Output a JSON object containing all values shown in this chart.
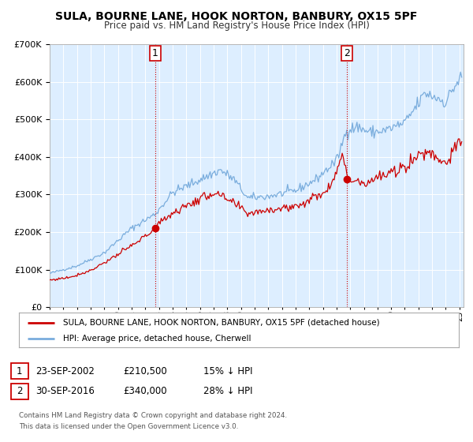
{
  "title": "SULA, BOURNE LANE, HOOK NORTON, BANBURY, OX15 5PF",
  "subtitle": "Price paid vs. HM Land Registry's House Price Index (HPI)",
  "legend_label_red": "SULA, BOURNE LANE, HOOK NORTON, BANBURY, OX15 5PF (detached house)",
  "legend_label_blue": "HPI: Average price, detached house, Cherwell",
  "annotation1_date": "23-SEP-2002",
  "annotation1_price": "£210,500",
  "annotation1_hpi": "15% ↓ HPI",
  "annotation2_date": "30-SEP-2016",
  "annotation2_price": "£340,000",
  "annotation2_hpi": "28% ↓ HPI",
  "footer1": "Contains HM Land Registry data © Crown copyright and database right 2024.",
  "footer2": "This data is licensed under the Open Government Licence v3.0.",
  "sale1_x": 2002.73,
  "sale1_y": 210500,
  "sale2_x": 2016.75,
  "sale2_y": 340000,
  "vline1_x": 2002.73,
  "vline2_x": 2016.75,
  "ylim": [
    0,
    700000
  ],
  "xlim_start": 1995.0,
  "xlim_end": 2025.3,
  "red_color": "#cc0000",
  "blue_color": "#7aaddd",
  "vline_color": "#cc0000",
  "plot_bg_color": "#ddeeff",
  "grid_color": "#ffffff"
}
